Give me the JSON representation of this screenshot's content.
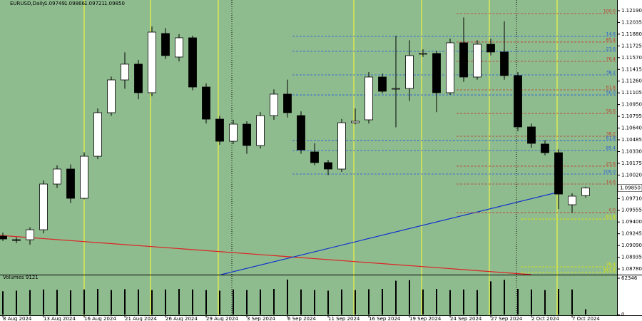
{
  "chart_data": {
    "type": "candlestick",
    "header": {
      "symbol": "EURUSD,Daily",
      "quote": [
        "1.09749",
        "1.09866",
        "1.09721",
        "1.09850"
      ]
    },
    "categories": [
      "8 Aug 2024",
      null,
      null,
      "13 Aug 2024",
      null,
      null,
      "16 Aug 2024",
      null,
      null,
      "21 Aug 2024",
      null,
      null,
      "26 Aug 2024",
      null,
      null,
      "29 Aug 2024",
      null,
      null,
      "3 Sep 2024",
      null,
      null,
      "6 Sep 2024",
      null,
      null,
      "11 Sep 2024",
      null,
      null,
      "16 Sep 2024",
      null,
      null,
      "19 Sep 2024",
      null,
      null,
      "24 Sep 2024",
      null,
      null,
      "27 Sep 2024",
      null,
      null,
      "2 Oct 2024",
      null,
      null,
      "7 Oct 2024",
      null
    ],
    "open": [
      1.09213,
      1.09166,
      1.09166,
      1.09298,
      1.09901,
      1.10099,
      1.09713,
      1.10268,
      1.10843,
      1.11276,
      1.11484,
      1.11107,
      1.11889,
      1.11578,
      1.11832,
      1.11182,
      1.10758,
      1.10466,
      1.10692,
      1.1041,
      1.10805,
      1.11088,
      1.10805,
      1.10325,
      1.10184,
      1.10099,
      1.10711,
      1.10749,
      1.11314,
      1.11163,
      1.11163,
      1.11625,
      1.11625,
      1.11107,
      1.11766,
      1.11314,
      1.11747,
      1.11644,
      1.11333,
      1.10655,
      1.10429,
      1.10315,
      1.09628,
      1.09749
    ],
    "high": [
      1.0926,
      1.092,
      1.0933,
      1.0995,
      1.1015,
      1.1016,
      1.1032,
      1.109,
      1.1132,
      1.1164,
      1.1154,
      1.1198,
      1.1196,
      1.1188,
      1.1186,
      1.1123,
      1.108,
      1.1075,
      1.1073,
      1.1085,
      1.1115,
      1.1128,
      1.1086,
      1.1044,
      1.1022,
      1.1076,
      1.109,
      1.1138,
      1.1136,
      1.1186,
      1.118,
      1.1168,
      1.1166,
      1.1182,
      1.121,
      1.118,
      1.1182,
      1.1205,
      1.1138,
      1.107,
      1.1048,
      1.1036,
      1.0978,
      1.09866
    ],
    "low": [
      1.0915,
      1.0912,
      1.091,
      1.0925,
      1.0985,
      1.0965,
      1.097,
      1.1023,
      1.108,
      1.1116,
      1.1102,
      1.1106,
      1.1155,
      1.1152,
      1.1114,
      1.107,
      1.1042,
      1.1043,
      1.103,
      1.1037,
      1.1075,
      1.1078,
      1.103,
      1.1015,
      1.1002,
      1.1006,
      1.1069,
      1.107,
      1.111,
      1.1065,
      1.11,
      1.1158,
      1.1085,
      1.1108,
      1.1125,
      1.1128,
      1.116,
      1.1128,
      1.106,
      1.1038,
      1.1028,
      1.0957,
      1.0952,
      1.09721
    ],
    "close": [
      1.09176,
      1.09157,
      1.09298,
      1.09901,
      1.10099,
      1.09713,
      1.10268,
      1.10843,
      1.11276,
      1.11484,
      1.11107,
      1.11907,
      1.11597,
      1.11832,
      1.11182,
      1.10758,
      1.10466,
      1.10692,
      1.1041,
      1.10805,
      1.11088,
      1.10843,
      1.10353,
      1.10184,
      1.10099,
      1.10711,
      1.1073,
      1.11314,
      1.11126,
      1.11163,
      1.11597,
      1.11625,
      1.11107,
      1.11766,
      1.11314,
      1.11747,
      1.11644,
      1.11333,
      1.10655,
      1.10438,
      1.10315,
      1.09769,
      1.09741,
      1.0985
    ],
    "ylim": [
      1.08705,
      1.12331
    ],
    "yticks": [
      {
        "value": 1.1219,
        "label": "1.12190"
      },
      {
        "value": 1.12035,
        "label": "1.12035"
      },
      {
        "value": 1.1188,
        "label": "1.11880"
      },
      {
        "value": 1.11725,
        "label": "1.11725"
      },
      {
        "value": 1.1157,
        "label": "1.11570"
      },
      {
        "value": 1.11415,
        "label": "1.11415"
      },
      {
        "value": 1.1126,
        "label": "1.11260"
      },
      {
        "value": 1.11105,
        "label": "1.11105"
      },
      {
        "value": 1.1095,
        "label": "1.10950"
      },
      {
        "value": 1.10795,
        "label": "1.10795"
      },
      {
        "value": 1.1064,
        "label": "1.10640"
      },
      {
        "value": 1.10485,
        "label": "1.10485"
      },
      {
        "value": 1.1033,
        "label": "1.10330"
      },
      {
        "value": 1.10175,
        "label": "1.10175"
      },
      {
        "value": 1.1002,
        "label": "1.10020"
      },
      {
        "value": 1.0971,
        "label": "1.09710"
      },
      {
        "value": 1.09555,
        "label": "1.09555"
      },
      {
        "value": 1.094,
        "label": "1.09400"
      },
      {
        "value": 1.09245,
        "label": "1.09245"
      },
      {
        "value": 1.0909,
        "label": "1.09090"
      },
      {
        "value": 1.08935,
        "label": "1.08935"
      },
      {
        "value": 1.0878,
        "label": "1.08780"
      }
    ],
    "fib_levels": [
      {
        "label": "100.0",
        "price": 1.12152,
        "color": "#c0392b"
      },
      {
        "label": "85.4",
        "price": 1.11776,
        "color": "#c0392b"
      },
      {
        "label": "76.4",
        "price": 1.11521,
        "color": "#c0392b"
      },
      {
        "label": "61.8",
        "price": 1.11144,
        "color": "#c0392b"
      },
      {
        "label": "50.0",
        "price": 1.10833,
        "color": "#c0392b"
      },
      {
        "label": "38.2",
        "price": 1.10532,
        "color": "#c0392b"
      },
      {
        "label": "23.6",
        "price": 1.10137,
        "color": "#c0392b"
      },
      {
        "label": "14.6",
        "price": 1.09901,
        "color": "#c0392b"
      },
      {
        "label": "0.0",
        "price": 1.09524,
        "color": "#c0392b"
      },
      {
        "label": "14.6",
        "price": 1.11851,
        "color": "#2255dd"
      },
      {
        "label": "23.6",
        "price": 1.11653,
        "color": "#2255dd"
      },
      {
        "label": "38.2",
        "price": 1.11342,
        "color": "#2255dd"
      },
      {
        "label": "50.0",
        "price": 1.11078,
        "color": "#2255dd"
      },
      {
        "label": "61.8",
        "price": 1.10476,
        "color": "#2255dd"
      },
      {
        "label": "85.4",
        "price": 1.10344,
        "color": "#2255dd"
      },
      {
        "label": "100.0",
        "price": 1.10033,
        "color": "#2255dd"
      },
      {
        "label": "61.8",
        "price": 1.09439,
        "color": "#e6e600"
      },
      {
        "label": "76.4",
        "price": 1.08808,
        "color": "#e6e600"
      },
      {
        "label": "161.8",
        "price": 1.08733,
        "color": "#e6e600"
      }
    ],
    "volume_label": "Volumes 9121",
    "volumes": [
      40000,
      41000,
      42000,
      43000,
      42500,
      41500,
      43000,
      44000,
      42000,
      43500,
      43000,
      42000,
      43000,
      44000,
      43000,
      42000,
      41000,
      43000,
      42000,
      43000,
      44000,
      60000,
      43000,
      42000,
      41000,
      43000,
      42000,
      43500,
      44000,
      58000,
      59000,
      43000,
      44000,
      42000,
      43000,
      42000,
      57000,
      59500,
      44000,
      43000,
      42000,
      44000,
      43000,
      9121
    ],
    "vol_ylim": [
      0,
      62346
    ],
    "vol_yticks": [
      62346,
      0
    ],
    "colors": {
      "background": "#8fbc8f",
      "up": "#ffffff",
      "down": "#000000"
    }
  }
}
